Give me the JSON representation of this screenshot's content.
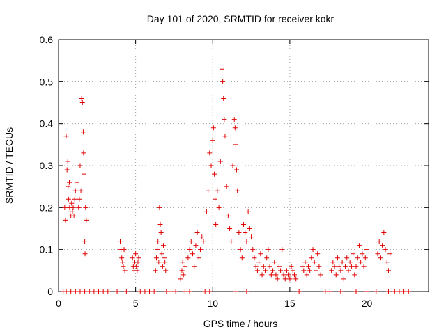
{
  "chart_data": {
    "type": "scatter",
    "title": "Day 101 of 2020, SRMTID for receiver kokr",
    "xlabel": "GPS time / hours",
    "ylabel": "SRMTID / TECUs",
    "xlim": [
      0,
      24
    ],
    "ylim": [
      0,
      0.6
    ],
    "xticks": [
      0,
      5,
      10,
      15,
      20
    ],
    "xtick_labels": [
      "0",
      "5",
      "10",
      "15",
      "20"
    ],
    "yticks": [
      0,
      0.1,
      0.2,
      0.3,
      0.4,
      0.5,
      0.6
    ],
    "ytick_labels": [
      "0",
      "0.1",
      "0.2",
      "0.3",
      "0.4",
      "0.5",
      "0.6"
    ],
    "grid": true,
    "marker": "+",
    "series": [
      {
        "name": "SRMTID",
        "color": "#e00000",
        "x": [
          0.4,
          0.45,
          0.5,
          0.55,
          0.6,
          0.62,
          0.65,
          0.7,
          0.72,
          0.75,
          0.8,
          0.85,
          0.9,
          0.95,
          1.0,
          1.05,
          1.1,
          1.2,
          1.3,
          1.35,
          1.4,
          1.45,
          1.5,
          1.55,
          1.6,
          1.62,
          1.65,
          1.7,
          1.72,
          1.75,
          1.8,
          4.0,
          4.05,
          4.1,
          4.15,
          4.2,
          4.25,
          4.3,
          4.8,
          4.85,
          4.9,
          4.95,
          5.0,
          5.05,
          5.1,
          5.15,
          5.2,
          6.3,
          6.35,
          6.4,
          6.45,
          6.5,
          6.55,
          6.6,
          6.65,
          6.7,
          6.75,
          6.8,
          6.85,
          6.9,
          6.95,
          7.9,
          8.0,
          8.05,
          8.1,
          8.2,
          8.4,
          8.5,
          8.6,
          8.7,
          8.8,
          8.9,
          9.0,
          9.1,
          9.2,
          9.3,
          9.4,
          9.6,
          9.7,
          9.8,
          9.9,
          10.0,
          10.05,
          10.1,
          10.15,
          10.2,
          10.3,
          10.4,
          10.5,
          10.6,
          10.65,
          10.7,
          10.75,
          10.8,
          10.9,
          11.0,
          11.1,
          11.2,
          11.3,
          11.4,
          11.45,
          11.5,
          11.55,
          11.6,
          11.7,
          11.8,
          11.9,
          12.0,
          12.1,
          12.2,
          12.3,
          12.4,
          12.5,
          12.6,
          12.7,
          12.8,
          12.9,
          13.0,
          13.1,
          13.2,
          13.3,
          13.4,
          13.5,
          13.6,
          13.7,
          13.8,
          13.9,
          14.0,
          14.1,
          14.2,
          14.3,
          14.4,
          14.5,
          14.6,
          14.7,
          14.8,
          14.9,
          15.0,
          15.1,
          15.2,
          15.3,
          15.4,
          15.8,
          15.9,
          16.0,
          16.1,
          16.2,
          16.3,
          16.4,
          16.5,
          16.6,
          16.7,
          16.8,
          16.9,
          17.0,
          17.7,
          17.8,
          17.9,
          18.0,
          18.1,
          18.2,
          18.3,
          18.4,
          18.5,
          18.6,
          18.7,
          18.8,
          18.9,
          19.0,
          19.1,
          19.2,
          19.3,
          19.4,
          19.5,
          19.6,
          19.7,
          19.8,
          19.9,
          20.0,
          20.7,
          20.8,
          20.9,
          21.0,
          21.1,
          21.2,
          21.3,
          21.4,
          21.5,
          0.3,
          0.5,
          0.8,
          1.1,
          1.4,
          1.7,
          2.0,
          2.3,
          2.6,
          2.9,
          3.2,
          3.8,
          4.4,
          5.3,
          5.6,
          5.9,
          6.2,
          7.0,
          7.3,
          7.6,
          8.2,
          8.5,
          9.5,
          9.8,
          11.5,
          12.2,
          15.6,
          17.3,
          17.6,
          18.3,
          19.3,
          20.0,
          20.6,
          21.4,
          21.8,
          22.1,
          22.4,
          22.7
        ],
        "y": [
          0.2,
          0.17,
          0.37,
          0.29,
          0.31,
          0.25,
          0.22,
          0.26,
          0.2,
          0.19,
          0.18,
          0.21,
          0.19,
          0.2,
          0.18,
          0.22,
          0.24,
          0.26,
          0.2,
          0.22,
          0.3,
          0.24,
          0.46,
          0.45,
          0.38,
          0.33,
          0.28,
          0.12,
          0.09,
          0.2,
          0.17,
          0.12,
          0.1,
          0.08,
          0.07,
          0.06,
          0.1,
          0.05,
          0.08,
          0.06,
          0.05,
          0.07,
          0.09,
          0.06,
          0.05,
          0.07,
          0.08,
          0.05,
          0.08,
          0.1,
          0.12,
          0.07,
          0.2,
          0.16,
          0.14,
          0.09,
          0.06,
          0.11,
          0.08,
          0.07,
          0.05,
          0.03,
          0.05,
          0.07,
          0.04,
          0.06,
          0.08,
          0.1,
          0.12,
          0.09,
          0.06,
          0.11,
          0.14,
          0.08,
          0.1,
          0.13,
          0.12,
          0.19,
          0.24,
          0.33,
          0.3,
          0.36,
          0.39,
          0.28,
          0.22,
          0.16,
          0.24,
          0.2,
          0.31,
          0.53,
          0.5,
          0.46,
          0.41,
          0.37,
          0.25,
          0.18,
          0.15,
          0.12,
          0.3,
          0.41,
          0.39,
          0.35,
          0.29,
          0.24,
          0.14,
          0.1,
          0.08,
          0.16,
          0.14,
          0.12,
          0.19,
          0.15,
          0.13,
          0.1,
          0.08,
          0.06,
          0.05,
          0.07,
          0.09,
          0.04,
          0.06,
          0.05,
          0.08,
          0.1,
          0.06,
          0.04,
          0.05,
          0.07,
          0.04,
          0.03,
          0.06,
          0.05,
          0.1,
          0.04,
          0.03,
          0.05,
          0.04,
          0.03,
          0.06,
          0.05,
          0.04,
          0.03,
          0.06,
          0.05,
          0.07,
          0.04,
          0.06,
          0.05,
          0.08,
          0.1,
          0.07,
          0.05,
          0.09,
          0.06,
          0.04,
          0.05,
          0.07,
          0.06,
          0.04,
          0.08,
          0.06,
          0.05,
          0.07,
          0.03,
          0.06,
          0.08,
          0.05,
          0.07,
          0.06,
          0.09,
          0.04,
          0.06,
          0.08,
          0.11,
          0.07,
          0.09,
          0.06,
          0.08,
          0.1,
          0.09,
          0.12,
          0.08,
          0.11,
          0.14,
          0.1,
          0.07,
          0.05,
          0.09,
          0,
          0,
          0,
          0,
          0,
          0,
          0,
          0,
          0,
          0,
          0,
          0,
          0,
          0,
          0,
          0,
          0,
          0,
          0,
          0,
          0,
          0,
          0,
          0,
          0,
          0,
          0,
          0,
          0,
          0,
          0,
          0,
          0,
          0,
          0,
          0,
          0,
          0
        ]
      }
    ]
  }
}
